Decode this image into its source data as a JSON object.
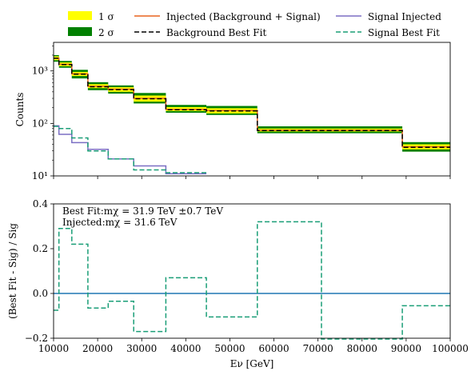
{
  "chart_data": [
    {
      "type": "line",
      "ylabel": "Counts",
      "yscale": "log",
      "xlim": [
        10000,
        100000
      ],
      "ylim": [
        10,
        3500
      ],
      "y_ticks": [
        10,
        100,
        1000
      ],
      "y_tick_labels": [
        "10¹",
        "10²",
        "10³"
      ],
      "bin_edges": [
        10000,
        11220,
        14130,
        17780,
        22390,
        28180,
        35480,
        44670,
        56230,
        70790,
        89130,
        100000
      ],
      "bands": [
        {
          "name": "2 σ",
          "color": "#008000",
          "lower": [
            1500,
            1150,
            720,
            430,
            370,
            240,
            160,
            145,
            65,
            65,
            29
          ],
          "upper": [
            2000,
            1550,
            1050,
            610,
            530,
            380,
            225,
            215,
            88,
            88,
            44
          ]
        },
        {
          "name": "1 σ",
          "color": "#ffff00",
          "lower": [
            1600,
            1230,
            800,
            470,
            400,
            260,
            172,
            155,
            70,
            70,
            32
          ],
          "upper": [
            1900,
            1450,
            960,
            560,
            490,
            340,
            205,
            195,
            80,
            80,
            40
          ]
        }
      ],
      "series": [
        {
          "name": "Injected (Background + Signal)",
          "color": "#e8641e",
          "style": "solid",
          "values": [
            1760,
            1340,
            880,
            510,
            450,
            300,
            185,
            176,
            74,
            74,
            36
          ]
        },
        {
          "name": "Background Best Fit",
          "color": "#000000",
          "style": "dashed",
          "values": [
            1740,
            1320,
            870,
            500,
            440,
            295,
            182,
            173,
            73,
            73,
            35
          ]
        },
        {
          "name": "Signal Injected",
          "color": "#7b6fc4",
          "style": "solid",
          "values": [
            90,
            62,
            43,
            32,
            21,
            15.5,
            11,
            null,
            null,
            null,
            null
          ]
        },
        {
          "name": "Signal Best Fit",
          "color": "#1a9e77",
          "style": "dashed",
          "values": [
            88,
            80,
            53,
            30,
            21,
            13,
            11.5,
            null,
            null,
            null,
            null
          ]
        }
      ]
    },
    {
      "type": "line",
      "xlabel": "Eν [GeV]",
      "ylabel": "(Best Fit - Sig) / Sig",
      "xlim": [
        10000,
        100000
      ],
      "ylim": [
        -0.2,
        0.4
      ],
      "x_ticks": [
        10000,
        20000,
        30000,
        40000,
        50000,
        60000,
        70000,
        80000,
        90000,
        100000
      ],
      "y_ticks": [
        -0.2,
        0.0,
        0.2,
        0.4
      ],
      "y_tick_labels": [
        "−0.2",
        "0.0",
        "0.2",
        "0.4"
      ],
      "annotations": [
        "Best Fit:mχ = 31.9 TeV ±0.7 TeV",
        "Injected:mχ = 31.6 TeV"
      ],
      "zero_line_color": "#1f77b4",
      "series": [
        {
          "name": "",
          "color": "#1a9e77",
          "style": "dashed",
          "bin_edges": [
            10000,
            11220,
            14130,
            17780,
            22390,
            28180,
            35480,
            44670,
            56230,
            70790,
            89130,
            100000
          ],
          "values": [
            -0.075,
            0.29,
            0.22,
            -0.065,
            -0.035,
            -0.17,
            0.07,
            -0.105,
            0.32,
            -0.3,
            -0.055
          ]
        }
      ]
    }
  ]
}
